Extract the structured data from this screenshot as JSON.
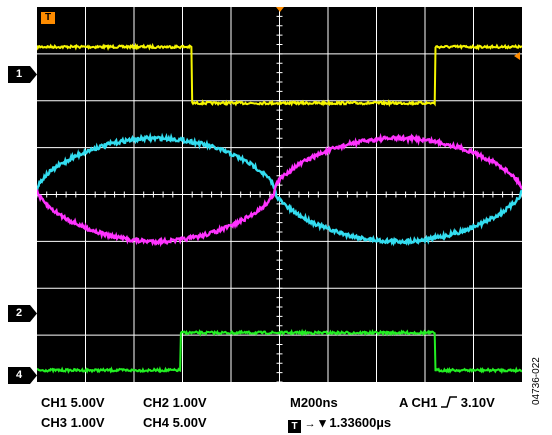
{
  "screen": {
    "trigger_label": "T",
    "grid": {
      "divisions_x": 10,
      "divisions_y": 8,
      "color": "#ffffff"
    }
  },
  "markers": [
    {
      "label": "1",
      "color": "#000000"
    },
    {
      "label": "2",
      "color": "#000000"
    },
    {
      "label": "4",
      "color": "#000000"
    }
  ],
  "traces": {
    "ch1": {
      "color": "#f5f500",
      "high_div": 0.85,
      "low_div": 2.05,
      "fall_div": 3.2,
      "rise_div": 8.2
    },
    "ch2": {
      "color": "#ff33ff"
    },
    "ch3": {
      "color": "#33ddf0"
    },
    "ch4": {
      "color": "#22ee22",
      "low_div": 7.75,
      "high_div": 6.95,
      "rise_div": 2.95,
      "fall_div": 8.2
    }
  },
  "readout": {
    "ch1": "CH1  5.00V",
    "ch2": "CH2  1.00V",
    "ch3": "CH3  1.00V",
    "ch4": "CH4  5.00V",
    "timebase": "M200ns",
    "trigger": "A  CH1",
    "trigger_level": "3.10V",
    "trigger_icon": "T",
    "position": "▾ 1.33600µs"
  },
  "figure_id": "04736-022"
}
